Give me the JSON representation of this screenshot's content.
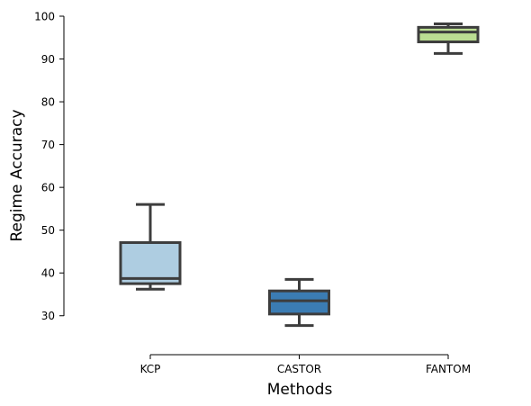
{
  "chart_data": {
    "type": "boxplot",
    "xlabel": "Methods",
    "ylabel": "Regime Accuracy",
    "ylim": [
      20.9,
      100
    ],
    "yticks": [
      30,
      40,
      50,
      60,
      70,
      80,
      90,
      100
    ],
    "grid": false,
    "categories": [
      "KCP",
      "CASTOR",
      "FANTOM"
    ],
    "series": [
      {
        "category": "KCP",
        "whisker_low": 36.2,
        "q1": 37.5,
        "median": 38.7,
        "q3": 47.1,
        "whisker_high": 56.0,
        "color": "#aecde1"
      },
      {
        "category": "CASTOR",
        "whisker_low": 27.7,
        "q1": 30.4,
        "median": 33.5,
        "q3": 35.8,
        "whisker_high": 38.5,
        "color": "#3b7cb3"
      },
      {
        "category": "FANTOM",
        "whisker_low": 91.3,
        "q1": 94.0,
        "median": 96.3,
        "q3": 97.4,
        "whisker_high": 98.2,
        "color": "#bbdd92"
      }
    ]
  }
}
